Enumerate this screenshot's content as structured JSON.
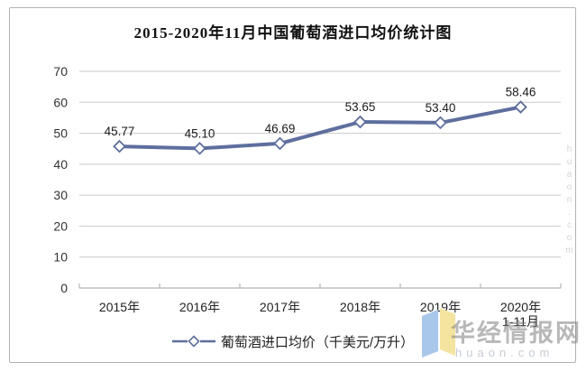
{
  "chart_data": {
    "type": "line",
    "title": "2015-2020年11月中国葡萄酒进口均价统计图",
    "categories": [
      "2015年",
      "2016年",
      "2017年",
      "2018年",
      "2019年",
      "2020年1-11月"
    ],
    "x_tick_lines": [
      [
        "2015年"
      ],
      [
        "2016年"
      ],
      [
        "2017年"
      ],
      [
        "2018年"
      ],
      [
        "2019年"
      ],
      [
        "2020年",
        "1-11月"
      ]
    ],
    "series": [
      {
        "name": "葡萄酒进口均价（千美元/万升）",
        "values": [
          45.77,
          45.1,
          46.69,
          53.65,
          53.4,
          58.46
        ],
        "data_labels": [
          "45.77",
          "45.10",
          "46.69",
          "53.65",
          "53.40",
          "58.46"
        ]
      }
    ],
    "xlabel": "",
    "ylabel": "",
    "ylim": [
      0,
      70
    ],
    "yticks": [
      0,
      10,
      20,
      30,
      40,
      50,
      60,
      70
    ],
    "grid": true,
    "legend_position": "bottom",
    "line_color": "#5E6F9E",
    "marker": "open-diamond",
    "marker_fill": "#ffffff",
    "gridline_color": "#c9c9c9",
    "axis_color": "#b5b5b5",
    "label_color": "#1a1a1a"
  },
  "watermark": {
    "brand_cn": "华经情报网",
    "brand_en": "huaon.com",
    "side_text": "huaon.com",
    "logo_colors": {
      "blue": "#A9C7EB",
      "yellow": "#F4E4A0"
    }
  }
}
